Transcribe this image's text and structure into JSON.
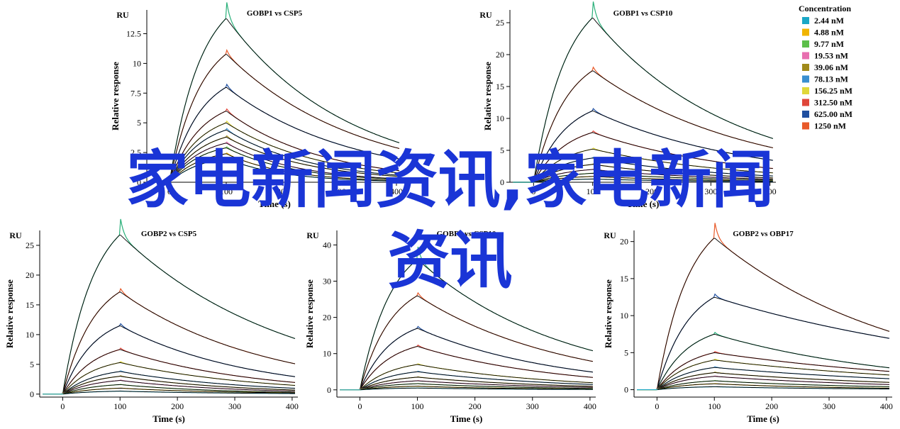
{
  "overlay_text": {
    "line1": "家电新闻资讯,家电新闻",
    "line2": "资讯"
  },
  "legend": {
    "title": "Concentration",
    "items": [
      {
        "label": "2.44 nM",
        "color": "#1aa7c6"
      },
      {
        "label": "4.88 nM",
        "color": "#f0b400"
      },
      {
        "label": "9.77 nM",
        "color": "#5cbf4a"
      },
      {
        "label": "19.53 nM",
        "color": "#e86fb0"
      },
      {
        "label": "39.06 nM",
        "color": "#a08a1a"
      },
      {
        "label": "78.13 nM",
        "color": "#3a8fd0"
      },
      {
        "label": "156.25 nM",
        "color": "#e0d83a"
      },
      {
        "label": "312.50 nM",
        "color": "#e0463a"
      },
      {
        "label": "625.00 nM",
        "color": "#1f4fa0"
      },
      {
        "label": "1250 nM",
        "color": "#e85a2a"
      }
    ]
  },
  "chart_data": [
    {
      "type": "line",
      "title": "GOBP1 vs CSP5",
      "xlabel": "Time (s)",
      "ylabel": "Relative response",
      "unit_label": "RU",
      "xlim": [
        -40,
        410
      ],
      "ylim": [
        0,
        14.5
      ],
      "xticks": [
        0,
        100,
        200,
        300,
        400
      ],
      "yticks": [
        0,
        2.5,
        5,
        7.5,
        10,
        12.5
      ],
      "ytick_labels": [
        "0",
        "2.5",
        "5",
        "7.5",
        "10",
        "12.5"
      ],
      "series": [
        {
          "color": "#2ab07a",
          "values": [
            13.8,
            3.4
          ]
        },
        {
          "color": "#e85a2a",
          "values": [
            10.8,
            2.9
          ]
        },
        {
          "color": "#1f4fa0",
          "values": [
            8.0,
            2.0
          ]
        },
        {
          "color": "#e0463a",
          "values": [
            6.0,
            1.0
          ]
        },
        {
          "color": "#e0d83a",
          "values": [
            5.0,
            0.8
          ]
        },
        {
          "color": "#3a8fd0",
          "values": [
            4.4,
            0.6
          ]
        },
        {
          "color": "#a08a1a",
          "values": [
            3.8,
            0.5
          ]
        },
        {
          "color": "#e86fb0",
          "values": [
            3.3,
            0.3
          ]
        },
        {
          "color": "#5cbf4a",
          "values": [
            2.9,
            0.25
          ]
        },
        {
          "color": "#f0b400",
          "values": [
            2.4,
            0.15
          ]
        },
        {
          "color": "#1aa7c6",
          "values": [
            2.0,
            0.1
          ]
        }
      ]
    },
    {
      "type": "line",
      "title": "GOBP1 vs CSP10",
      "xlabel": "Time (s)",
      "ylabel": "Relative response",
      "unit_label": "RU",
      "xlim": [
        -40,
        410
      ],
      "ylim": [
        0,
        27
      ],
      "xticks": [
        0,
        100,
        200,
        300,
        400
      ],
      "yticks": [
        0,
        5,
        10,
        15,
        20,
        25
      ],
      "ytick_labels": [
        "0",
        "5",
        "10",
        "15",
        "20",
        "25"
      ],
      "series": [
        {
          "color": "#2ab07a",
          "values": [
            25.8,
            7.0
          ]
        },
        {
          "color": "#e85a2a",
          "values": [
            17.5,
            5.5
          ]
        },
        {
          "color": "#1f4fa0",
          "values": [
            11.2,
            3.5
          ]
        },
        {
          "color": "#e0463a",
          "values": [
            7.8,
            2.2
          ]
        },
        {
          "color": "#e0d83a",
          "values": [
            5.2,
            1.5
          ]
        },
        {
          "color": "#3a8fd0",
          "values": [
            3.8,
            1.0
          ]
        },
        {
          "color": "#a08a1a",
          "values": [
            2.8,
            0.7
          ]
        },
        {
          "color": "#e86fb0",
          "values": [
            2.0,
            0.5
          ]
        },
        {
          "color": "#5cbf4a",
          "values": [
            1.4,
            0.35
          ]
        },
        {
          "color": "#f0b400",
          "values": [
            0.9,
            0.2
          ]
        },
        {
          "color": "#1aa7c6",
          "values": [
            0.5,
            0.1
          ]
        }
      ]
    },
    {
      "type": "line",
      "title": "GOBP2 vs CSP5",
      "xlabel": "Time (s)",
      "ylabel": "Relative response",
      "unit_label": "RU",
      "xlim": [
        -40,
        410
      ],
      "ylim": [
        -0.5,
        27.5
      ],
      "xticks": [
        0,
        100,
        200,
        300,
        400
      ],
      "yticks": [
        0,
        5,
        10,
        15,
        20,
        25
      ],
      "ytick_labels": [
        "0",
        "5",
        "10",
        "15",
        "20",
        "25"
      ],
      "series": [
        {
          "color": "#2ab07a",
          "values": [
            26.8,
            9.5
          ]
        },
        {
          "color": "#e85a2a",
          "values": [
            17.2,
            5.2
          ]
        },
        {
          "color": "#1f4fa0",
          "values": [
            11.5,
            3.0
          ]
        },
        {
          "color": "#e0463a",
          "values": [
            7.5,
            2.0
          ]
        },
        {
          "color": "#e0d83a",
          "values": [
            5.3,
            1.5
          ]
        },
        {
          "color": "#3a8fd0",
          "values": [
            3.8,
            1.0
          ]
        },
        {
          "color": "#a08a1a",
          "values": [
            3.0,
            0.7
          ]
        },
        {
          "color": "#e86fb0",
          "values": [
            2.3,
            0.5
          ]
        },
        {
          "color": "#5cbf4a",
          "values": [
            1.6,
            0.3
          ]
        },
        {
          "color": "#f0b400",
          "values": [
            1.0,
            0.2
          ]
        },
        {
          "color": "#1aa7c6",
          "values": [
            0.5,
            0.1
          ]
        }
      ]
    },
    {
      "type": "line",
      "title": "GOBP2 vs CSP10",
      "xlabel": "Time (s)",
      "ylabel": "Relative response",
      "unit_label": "RU",
      "xlim": [
        -40,
        410
      ],
      "ylim": [
        -2,
        44
      ],
      "xticks": [
        0,
        100,
        200,
        300,
        400
      ],
      "yticks": [
        0,
        10,
        20,
        30,
        40
      ],
      "ytick_labels": [
        "0",
        "10",
        "20",
        "30",
        "40"
      ],
      "series": [
        {
          "color": "#2ab07a",
          "values": [
            36.0,
            11.0
          ]
        },
        {
          "color": "#e85a2a",
          "values": [
            26.0,
            8.0
          ]
        },
        {
          "color": "#1f4fa0",
          "values": [
            17.0,
            5.0
          ]
        },
        {
          "color": "#e0463a",
          "values": [
            12.0,
            3.5
          ]
        },
        {
          "color": "#e0d83a",
          "values": [
            7.0,
            2.0
          ]
        },
        {
          "color": "#3a8fd0",
          "values": [
            5.0,
            1.5
          ]
        },
        {
          "color": "#a08a1a",
          "values": [
            3.5,
            1.0
          ]
        },
        {
          "color": "#e86fb0",
          "values": [
            2.5,
            0.7
          ]
        },
        {
          "color": "#5cbf4a",
          "values": [
            1.7,
            0.4
          ]
        },
        {
          "color": "#f0b400",
          "values": [
            1.0,
            0.2
          ]
        },
        {
          "color": "#1aa7c6",
          "values": [
            0.5,
            0.1
          ]
        }
      ]
    },
    {
      "type": "line",
      "title": "GOBP2 vs OBP17",
      "xlabel": "Time (s)",
      "ylabel": "Relative response",
      "unit_label": "RU",
      "xlim": [
        -40,
        410
      ],
      "ylim": [
        -1,
        21.5
      ],
      "xticks": [
        0,
        100,
        200,
        300,
        400
      ],
      "yticks": [
        0,
        5,
        10,
        15,
        20
      ],
      "ytick_labels": [
        "0",
        "5",
        "10",
        "15",
        "20"
      ],
      "series": [
        {
          "color": "#e85a2a",
          "values": [
            20.5,
            8.0
          ]
        },
        {
          "color": "#1f4fa0",
          "values": [
            12.5,
            7.0
          ]
        },
        {
          "color": "#2ab07a",
          "values": [
            7.5,
            3.0
          ]
        },
        {
          "color": "#e0463a",
          "values": [
            5.0,
            2.5
          ]
        },
        {
          "color": "#e0d83a",
          "values": [
            4.0,
            2.0
          ]
        },
        {
          "color": "#3a8fd0",
          "values": [
            3.0,
            1.5
          ]
        },
        {
          "color": "#a08a1a",
          "values": [
            2.3,
            1.0
          ]
        },
        {
          "color": "#e86fb0",
          "values": [
            1.8,
            0.7
          ]
        },
        {
          "color": "#5cbf4a",
          "values": [
            1.2,
            0.4
          ]
        },
        {
          "color": "#f0b400",
          "values": [
            0.8,
            0.2
          ]
        },
        {
          "color": "#1aa7c6",
          "values": [
            0.4,
            0.1
          ]
        }
      ]
    }
  ]
}
